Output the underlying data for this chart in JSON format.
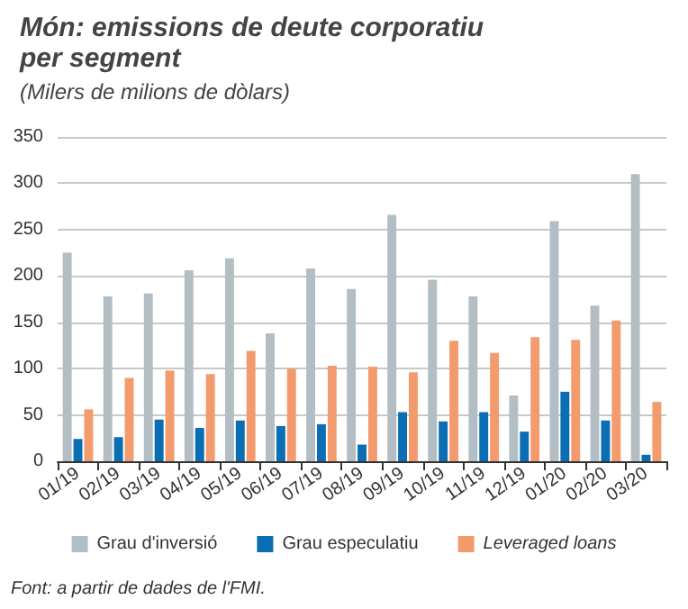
{
  "chart_data": {
    "type": "bar",
    "title": "Món: emissions de deute corporatiu\nper segment",
    "subtitle": "(Milers de milions de dòlars)",
    "categories": [
      "01/19",
      "02/19",
      "03/19",
      "04/19",
      "05/19",
      "06/19",
      "07/19",
      "08/19",
      "09/19",
      "10/19",
      "11/19",
      "12/19",
      "01/20",
      "02/20",
      "03/20"
    ],
    "series": [
      {
        "name": "Grau d'inversió",
        "color": "#b3bec4",
        "values": [
          225,
          178,
          181,
          206,
          219,
          138,
          208,
          186,
          266,
          196,
          178,
          71,
          259,
          168,
          310
        ]
      },
      {
        "name": "Grau especulatiu",
        "color": "#0a6eb4",
        "values": [
          24,
          26,
          45,
          36,
          44,
          38,
          40,
          18,
          53,
          43,
          53,
          32,
          75,
          44,
          7
        ]
      },
      {
        "name": "Leveraged loans",
        "color": "#f39b6d",
        "values": [
          56,
          90,
          98,
          94,
          119,
          100,
          103,
          102,
          96,
          130,
          117,
          134,
          131,
          152,
          64
        ]
      }
    ],
    "ylim": [
      0,
      350
    ],
    "yticks": [
      0,
      50,
      100,
      150,
      200,
      250,
      300,
      350
    ],
    "grid": "y",
    "legend": "bottom",
    "annotations": [
      "Font: a partir de dades de l'FMI."
    ]
  }
}
